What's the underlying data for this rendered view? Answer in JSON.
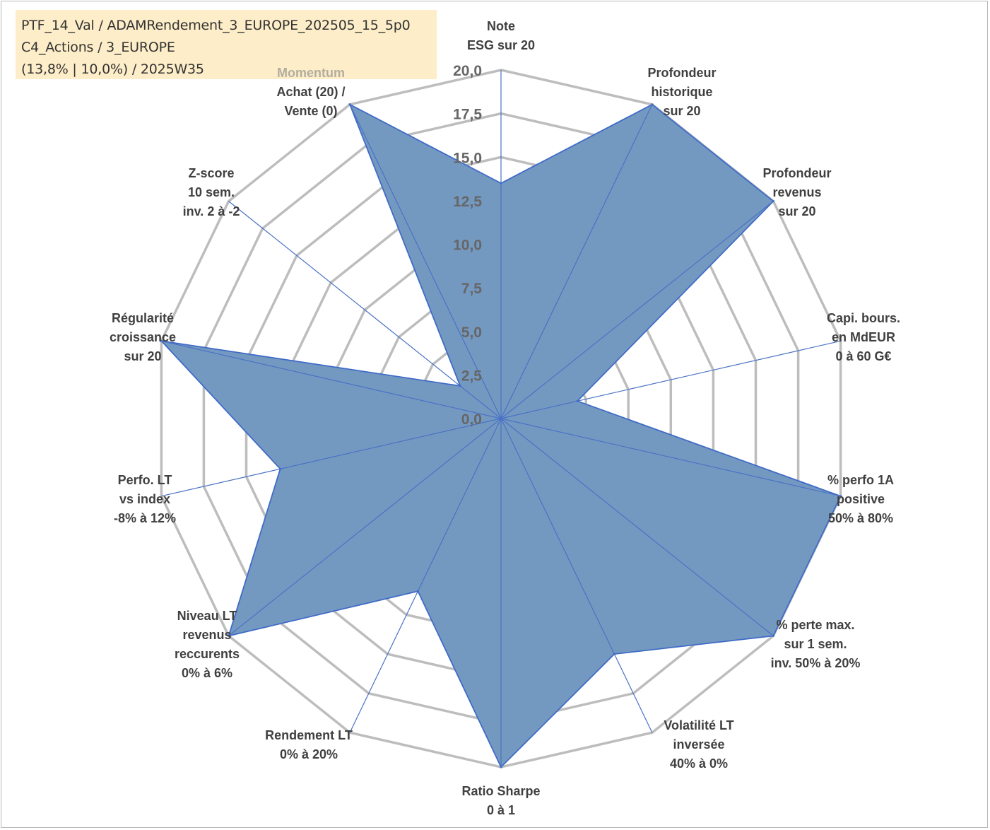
{
  "header": {
    "line1": "PTF_14_Val / ADAMRendement_3_EUROPE_202505_15_5p0",
    "line2": "C4_Actions / 3_EUROPE",
    "line3": "(13,8% | 10,0%) / 2025W35"
  },
  "colors": {
    "series_fill": "#7499c1",
    "series_stroke": "#3f6bc7",
    "grid": "#bdbdbd",
    "header_bg": "#fdedc8"
  },
  "chart_data": {
    "type": "radar",
    "r_range": [
      0,
      20
    ],
    "r_ticks": [
      "0,0",
      "2,5",
      "5,0",
      "7,5",
      "10,0",
      "12,5",
      "15,0",
      "17,5",
      "20,0"
    ],
    "axes": [
      {
        "lines": [
          "Note",
          "ESG sur 20"
        ],
        "value": 13.5
      },
      {
        "lines": [
          "Profondeur",
          "historique",
          "sur 20"
        ],
        "value": 20
      },
      {
        "lines": [
          "Profondeur",
          "revenus",
          "sur 20"
        ],
        "value": 20
      },
      {
        "lines": [
          "Capi. bours.",
          "en MdEUR",
          "0 à 60 G€"
        ],
        "value": 4.5
      },
      {
        "lines": [
          "% perfo 1A",
          "positive",
          "50% à 80%"
        ],
        "value": 20
      },
      {
        "lines": [
          "% perte max.",
          "sur 1 sem.",
          "inv. 50% à 20%"
        ],
        "value": 20
      },
      {
        "lines": [
          "Volatilité LT",
          "inversée",
          "40% à 0%"
        ],
        "value": 15
      },
      {
        "lines": [
          "Ratio Sharpe",
          "0 à 1"
        ],
        "value": 20
      },
      {
        "lines": [
          "Rendement LT",
          "0% à 20%"
        ],
        "value": 11
      },
      {
        "lines": [
          "Niveau LT",
          "revenus",
          "reccurents",
          "0% à 6%"
        ],
        "value": 20
      },
      {
        "lines": [
          "Perfo. LT",
          "vs index",
          "-8% à 12%"
        ],
        "value": 13
      },
      {
        "lines": [
          "Régularité",
          "croissance",
          "sur 20"
        ],
        "value": 20
      },
      {
        "lines": [
          "Z-score",
          "10 sem.",
          "inv. 2 à -2"
        ],
        "value": 3
      },
      {
        "lines": [
          "Momentum",
          "Achat (20) /",
          "Vente (0)"
        ],
        "value": 20,
        "accent_first_line": true
      }
    ],
    "grid": true,
    "legend": "none"
  }
}
